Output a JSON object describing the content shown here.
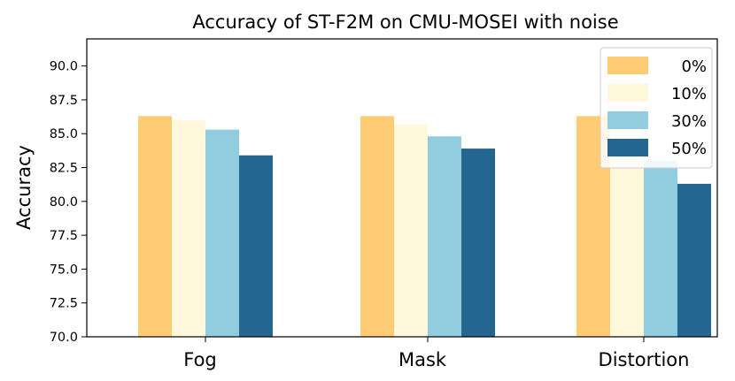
{
  "chart_data": {
    "type": "bar",
    "title": "Accuracy of ST-F2M on CMU-MOSEI with noise",
    "xlabel": "",
    "ylabel": "Accuracy",
    "categories": [
      "Fog",
      "Mask",
      "Distortion"
    ],
    "series": [
      {
        "name": "0%",
        "color": "#ffcc73",
        "values": [
          86.3,
          86.3,
          86.3
        ]
      },
      {
        "name": "10%",
        "color": "#fff8dc",
        "values": [
          86.0,
          85.7,
          84.2
        ]
      },
      {
        "name": "30%",
        "color": "#92cddf",
        "values": [
          85.3,
          84.8,
          83.0
        ]
      },
      {
        "name": "50%",
        "color": "#23668f",
        "values": [
          83.4,
          83.9,
          81.3
        ]
      }
    ],
    "ylim": [
      70.0,
      92.0
    ],
    "yticks": [
      "70.0",
      "72.5",
      "75.0",
      "77.5",
      "80.0",
      "82.5",
      "85.0",
      "87.5",
      "90.0"
    ],
    "grid": false,
    "legend_position": "top-right"
  }
}
